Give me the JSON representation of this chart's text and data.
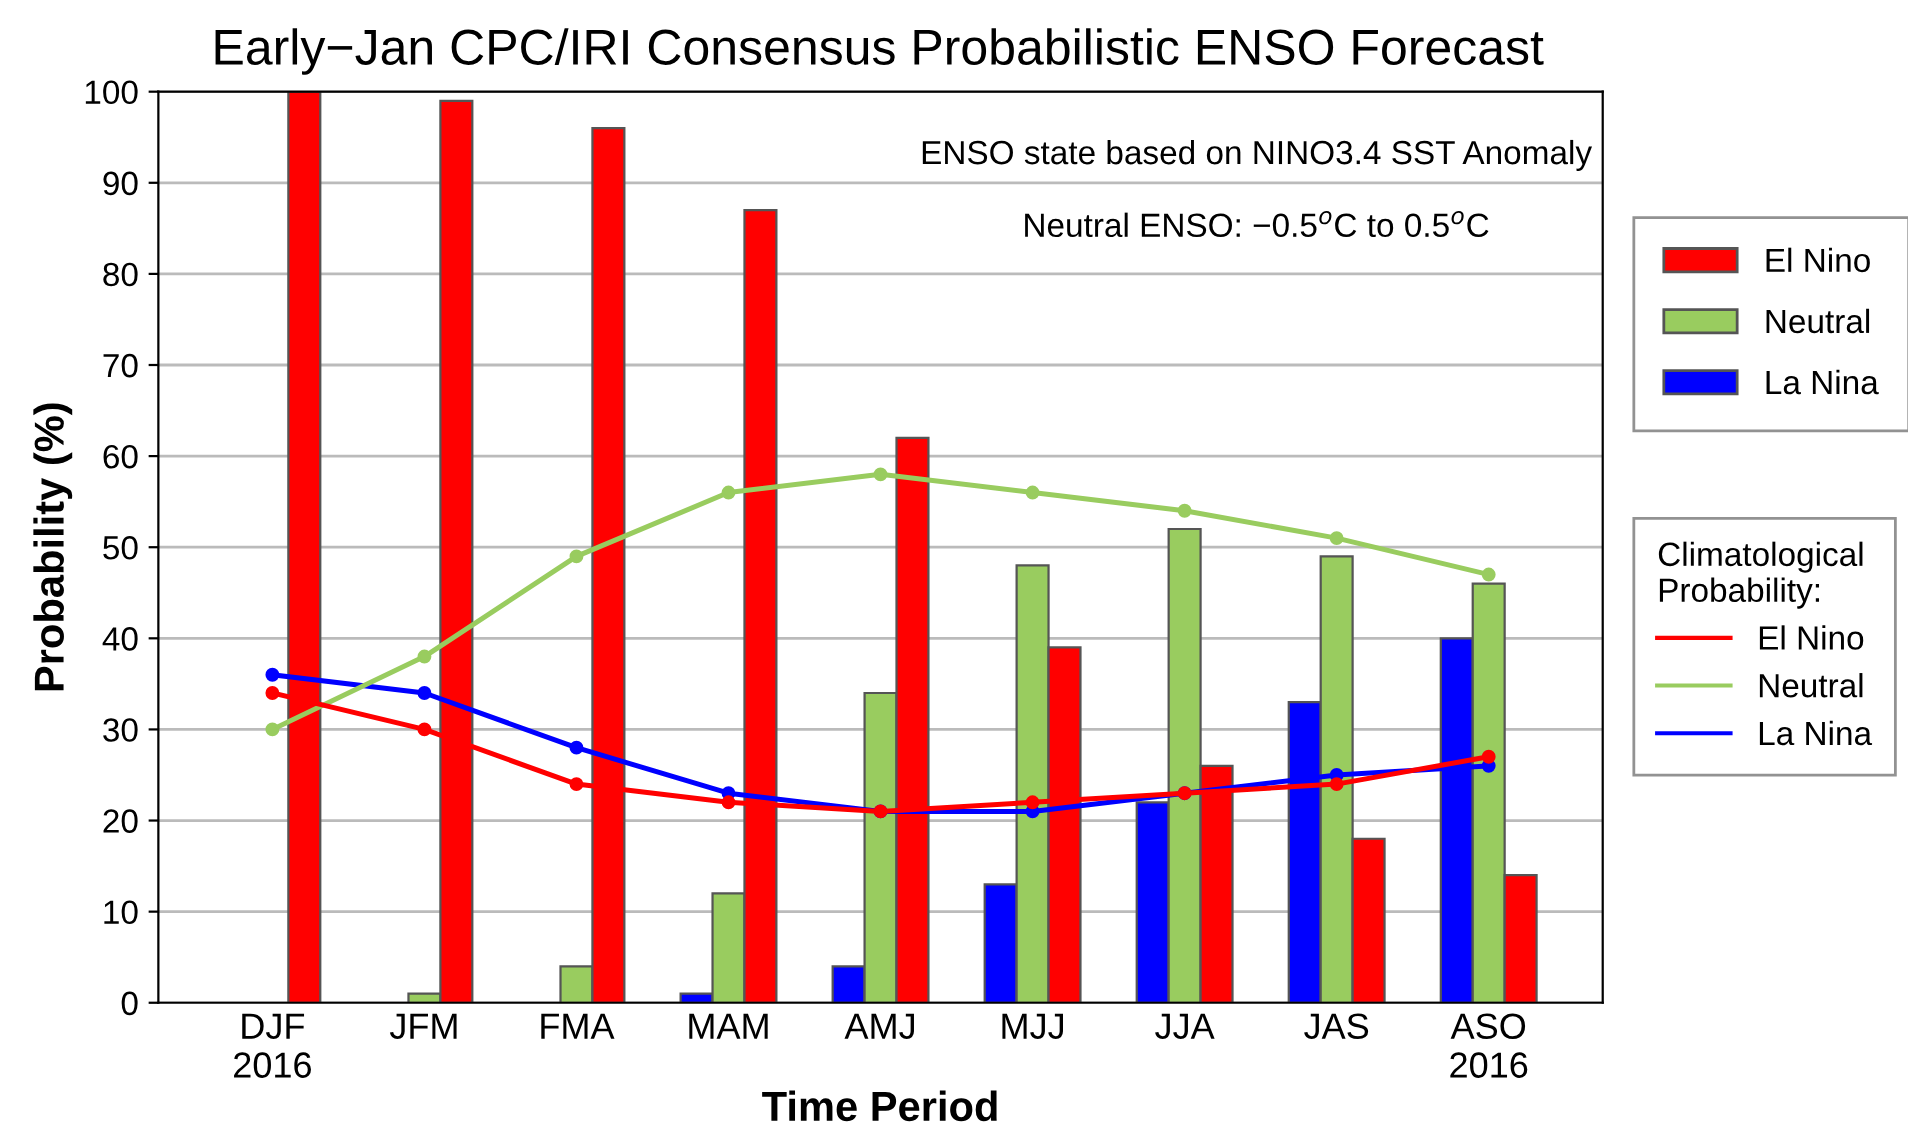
{
  "chart_data": {
    "type": "bar",
    "title": "Early−Jan CPC/IRI Consensus Probabilistic ENSO Forecast",
    "xlabel": "Time Period",
    "ylabel": "Probability (%)",
    "legend_title": "Climatological\nProbability:",
    "annotations": [
      "ENSO state based on NINO3.4 SST Anomaly",
      "Neutral ENSO: −0.5$^{o}$C to 0.5$^{o}$C"
    ],
    "categories": [
      "DJF\n2016",
      "JFM",
      "FMA",
      "MAM",
      "AMJ",
      "MJJ",
      "JJA",
      "JAS",
      "ASO\n2016"
    ],
    "series": [
      {
        "name": "La Nina",
        "color": "#0000ff",
        "values": [
          0,
          0,
          0,
          1,
          4,
          13,
          22,
          33,
          40
        ]
      },
      {
        "name": "Neutral",
        "color": "#99cc5f",
        "values": [
          0,
          1,
          4,
          12,
          34,
          48,
          52,
          49,
          46
        ]
      },
      {
        "name": "El Nino",
        "color": "#ff0000",
        "values": [
          100,
          99,
          96,
          87,
          62,
          39,
          26,
          18,
          14
        ]
      },
      {
        "name": "La Nina",
        "type": "line",
        "color": "#0000ff",
        "values": [
          36,
          34,
          28,
          23,
          21,
          21,
          23,
          25,
          26
        ]
      },
      {
        "name": "Neutral",
        "type": "line",
        "color": "#99cc5f",
        "values": [
          30,
          38,
          49,
          56,
          58,
          56,
          54,
          51,
          47
        ]
      },
      {
        "name": "El Nino",
        "type": "line",
        "color": "#ff0000",
        "values": [
          34,
          30,
          24,
          22,
          21,
          22,
          23,
          24,
          27
        ]
      }
    ],
    "ylim": [
      0,
      100
    ],
    "yticks": [
      0,
      10,
      20,
      30,
      40,
      50,
      60,
      70,
      80,
      90,
      100
    ],
    "grid": "y",
    "legend": "right",
    "marker": "circle",
    "line_style": "solid"
  }
}
